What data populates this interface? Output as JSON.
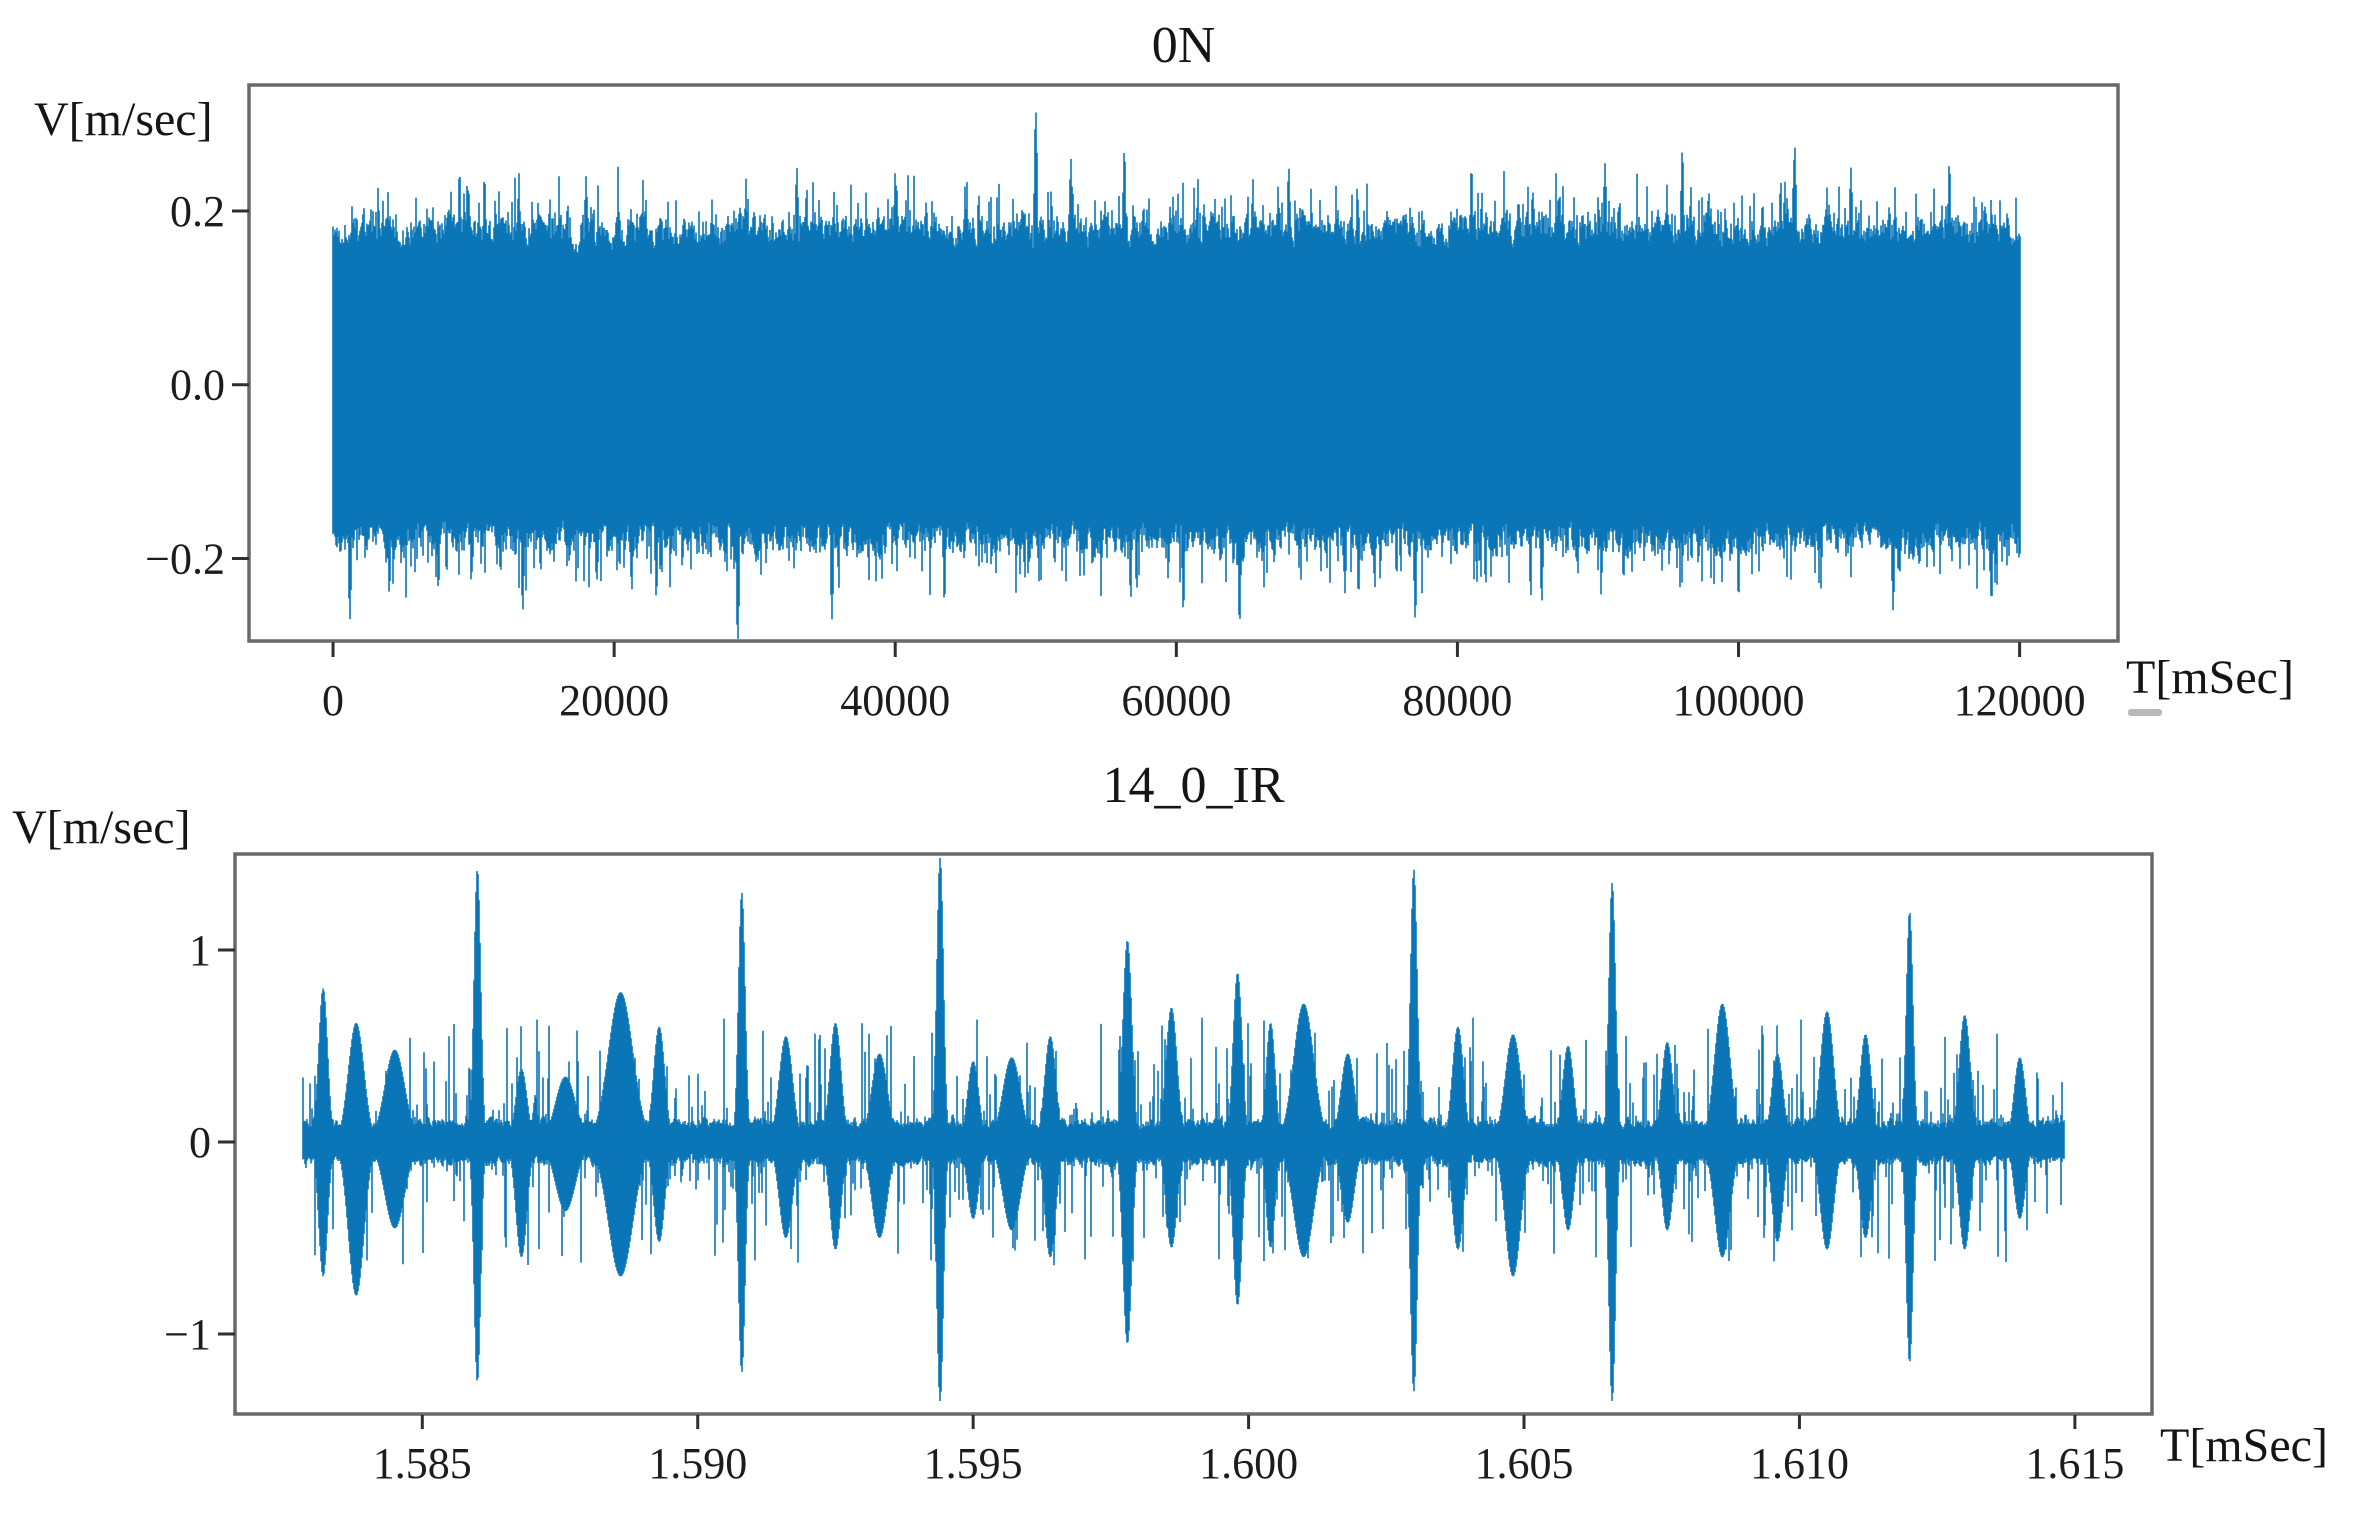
{
  "figure": {
    "background": "#ffffff",
    "spine_color": "#696969",
    "tick_color": "#2f2f2f",
    "smudge_color": "#b8b8b8"
  },
  "chart_data": [
    {
      "type": "line",
      "title": "0N",
      "ylabel": "V[m/sec]",
      "xlabel": "T[mSec]",
      "line_color": "#0b76b7",
      "grid": false,
      "legend": null,
      "xlim": [
        -5980,
        127000
      ],
      "ylim": [
        -0.295,
        0.345
      ],
      "xticks": [
        {
          "v": 0,
          "label": "0"
        },
        {
          "v": 20000,
          "label": "20000"
        },
        {
          "v": 40000,
          "label": "40000"
        },
        {
          "v": 60000,
          "label": "60000"
        },
        {
          "v": 80000,
          "label": "80000"
        },
        {
          "v": 100000,
          "label": "100000"
        },
        {
          "v": 120000,
          "label": "120000"
        }
      ],
      "yticks": [
        {
          "v": 0.2,
          "label": "0.2"
        },
        {
          "v": 0.0,
          "label": "0.0"
        },
        {
          "v": -0.2,
          "label": "−0.2"
        }
      ],
      "signal": {
        "description": "dense stationary noise band, envelope ~±0.19 with ragged peaks to ±0.25",
        "t_start": 0,
        "t_end": 120000,
        "base_amplitude": 0.148,
        "amplitude_jitter": 0.06,
        "rare_peak_extra": 0.055,
        "rare_peak_power": 7,
        "spike_width": 150,
        "spikes": [
          {
            "t": 1200,
            "v": -0.27
          },
          {
            "t": 4000,
            "v": -0.24
          },
          {
            "t": 9000,
            "v": 0.245
          },
          {
            "t": 13500,
            "v": -0.26
          },
          {
            "t": 18000,
            "v": 0.24
          },
          {
            "t": 23000,
            "v": -0.245
          },
          {
            "t": 28800,
            "v": -0.298
          },
          {
            "t": 33000,
            "v": 0.25
          },
          {
            "t": 35500,
            "v": -0.27
          },
          {
            "t": 40000,
            "v": 0.245
          },
          {
            "t": 43500,
            "v": -0.25
          },
          {
            "t": 50000,
            "v": 0.315
          },
          {
            "t": 52500,
            "v": 0.26
          },
          {
            "t": 56300,
            "v": 0.27
          },
          {
            "t": 60500,
            "v": -0.26
          },
          {
            "t": 64500,
            "v": -0.275
          },
          {
            "t": 68000,
            "v": 0.25
          },
          {
            "t": 72000,
            "v": -0.24
          },
          {
            "t": 77000,
            "v": -0.27
          },
          {
            "t": 81000,
            "v": 0.25
          },
          {
            "t": 86000,
            "v": -0.25
          },
          {
            "t": 90500,
            "v": 0.255
          },
          {
            "t": 96000,
            "v": 0.27
          },
          {
            "t": 100000,
            "v": -0.245
          },
          {
            "t": 104000,
            "v": 0.275
          },
          {
            "t": 108000,
            "v": 0.25
          },
          {
            "t": 111000,
            "v": -0.26
          },
          {
            "t": 115000,
            "v": 0.255
          },
          {
            "t": 118000,
            "v": -0.25
          }
        ]
      }
    },
    {
      "type": "line",
      "title": "14_0_IR",
      "ylabel": "V[m/sec]",
      "xlabel": "T[mSec]",
      "line_color": "#0b76b7",
      "grid": false,
      "legend": null,
      "xlim": [
        1.5816,
        1.6164
      ],
      "ylim": [
        -1.417,
        1.5
      ],
      "xticks": [
        {
          "v": 1.585,
          "label": "1.585"
        },
        {
          "v": 1.59,
          "label": "1.590"
        },
        {
          "v": 1.595,
          "label": "1.595"
        },
        {
          "v": 1.6,
          "label": "1.600"
        },
        {
          "v": 1.605,
          "label": "1.605"
        },
        {
          "v": 1.61,
          "label": "1.610"
        },
        {
          "v": 1.615,
          "label": "1.615"
        }
      ],
      "yticks": [
        {
          "v": 1,
          "label": "1"
        },
        {
          "v": 0,
          "label": "0"
        },
        {
          "v": -1,
          "label": "−1"
        }
      ],
      "signal": {
        "description": "impulsive vibration signal: core band ~±0.15 with repeated bursts; largest impulses ~±1.2 to ±1.5",
        "t_start": 1.58284,
        "t_end": 1.6148,
        "base_amplitude": 0.055,
        "amplitude_jitter": 0.09,
        "rare_peak_extra": 0.55,
        "rare_peak_power": 12,
        "spike_width": 6e-05,
        "spikes": [
          {
            "t": 1.5832,
            "up": 0.8,
            "down": -0.7,
            "w": 8e-05
          },
          {
            "t": 1.5838,
            "up": 0.62,
            "down": -0.8,
            "w": 0.00014
          },
          {
            "t": 1.5845,
            "up": 0.48,
            "down": -0.45,
            "w": 0.00018
          },
          {
            "t": 1.586,
            "up": 1.42,
            "down": -1.25,
            "w": 6e-05
          },
          {
            "t": 1.5868,
            "up": 0.38,
            "down": -0.6,
            "w": 0.0001
          },
          {
            "t": 1.5876,
            "up": 0.34,
            "down": -0.36,
            "w": 0.00018
          },
          {
            "t": 1.5886,
            "up": 0.78,
            "down": -0.7,
            "w": 0.00022
          },
          {
            "t": 1.5893,
            "up": 0.6,
            "down": -0.52,
            "w": 0.0001
          },
          {
            "t": 1.5908,
            "up": 1.3,
            "down": -1.2,
            "w": 6e-05
          },
          {
            "t": 1.5916,
            "up": 0.55,
            "down": -0.5,
            "w": 0.00012
          },
          {
            "t": 1.5925,
            "up": 0.62,
            "down": -0.56,
            "w": 0.0001
          },
          {
            "t": 1.5933,
            "up": 0.46,
            "down": -0.5,
            "w": 0.00014
          },
          {
            "t": 1.5944,
            "up": 1.48,
            "down": -1.35,
            "w": 6e-05
          },
          {
            "t": 1.595,
            "up": 0.42,
            "down": -0.4,
            "w": 0.0001
          },
          {
            "t": 1.5957,
            "up": 0.44,
            "down": -0.46,
            "w": 0.00016
          },
          {
            "t": 1.5964,
            "up": 0.55,
            "down": -0.6,
            "w": 0.0001
          },
          {
            "t": 1.5978,
            "up": 1.05,
            "down": -1.05,
            "w": 8e-05
          },
          {
            "t": 1.5986,
            "up": 0.7,
            "down": -0.55,
            "w": 0.0001
          },
          {
            "t": 1.5998,
            "up": 0.88,
            "down": -0.85,
            "w": 8e-05
          },
          {
            "t": 1.6004,
            "up": 0.62,
            "down": -0.55,
            "w": 8e-05
          },
          {
            "t": 1.601,
            "up": 0.72,
            "down": -0.6,
            "w": 0.00018
          },
          {
            "t": 1.6018,
            "up": 0.46,
            "down": -0.42,
            "w": 0.00012
          },
          {
            "t": 1.603,
            "up": 1.42,
            "down": -1.3,
            "w": 6e-05
          },
          {
            "t": 1.6038,
            "up": 0.6,
            "down": -0.56,
            "w": 0.0001
          },
          {
            "t": 1.6048,
            "up": 0.56,
            "down": -0.7,
            "w": 0.00014
          },
          {
            "t": 1.6058,
            "up": 0.5,
            "down": -0.46,
            "w": 0.0001
          },
          {
            "t": 1.6066,
            "up": 1.35,
            "down": -1.35,
            "w": 6e-05
          },
          {
            "t": 1.6076,
            "up": 0.52,
            "down": -0.46,
            "w": 0.0001
          },
          {
            "t": 1.6086,
            "up": 0.72,
            "down": -0.6,
            "w": 0.00014
          },
          {
            "t": 1.6096,
            "up": 0.46,
            "down": -0.52,
            "w": 0.0001
          },
          {
            "t": 1.6105,
            "up": 0.68,
            "down": -0.56,
            "w": 0.00012
          },
          {
            "t": 1.6112,
            "up": 0.56,
            "down": -0.5,
            "w": 0.0001
          },
          {
            "t": 1.612,
            "up": 1.2,
            "down": -1.15,
            "w": 6e-05
          },
          {
            "t": 1.613,
            "up": 0.66,
            "down": -0.56,
            "w": 0.0001
          },
          {
            "t": 1.614,
            "up": 0.44,
            "down": -0.4,
            "w": 0.0001
          }
        ]
      }
    }
  ]
}
